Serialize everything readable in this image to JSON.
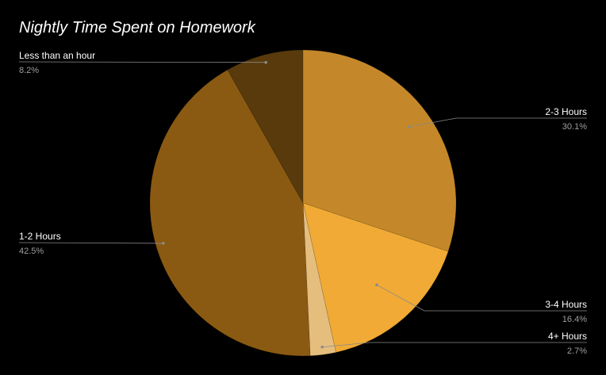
{
  "chart_data": {
    "type": "pie",
    "title": "Nightly Time Spent on Homework",
    "legend": "none",
    "slices": [
      {
        "label": "2-3 Hours",
        "value": 30.1,
        "percent_label": "30.1%",
        "color": "#c4882a"
      },
      {
        "label": "3-4 Hours",
        "value": 16.4,
        "percent_label": "16.4%",
        "color": "#f0aa35"
      },
      {
        "label": "4+ Hours",
        "value": 2.7,
        "percent_label": "2.7%",
        "color": "#e5be7e"
      },
      {
        "label": "1-2 Hours",
        "value": 42.5,
        "percent_label": "42.5%",
        "color": "#8b5a12"
      },
      {
        "label": "Less than an hour",
        "value": 8.2,
        "percent_label": "8.2%",
        "color": "#583a0c"
      }
    ]
  }
}
